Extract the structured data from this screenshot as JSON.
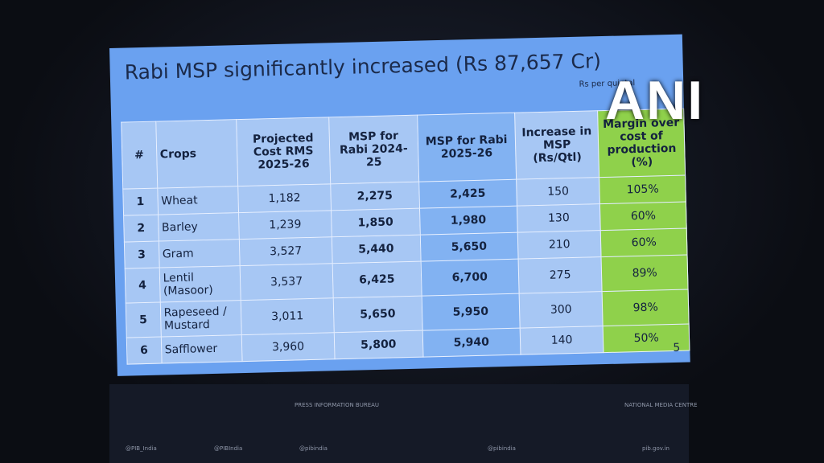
{
  "slide": {
    "title": "Rabi MSP significantly increased (Rs 87,657 Cr)",
    "unit_note": "Rs per quintal",
    "page_number": "5",
    "table": {
      "headers": [
        "#",
        "Crops",
        "Projected Cost RMS 2025-26",
        "MSP for Rabi 2024-25",
        "MSP for Rabi 2025-26",
        "Increase in MSP (Rs/Qtl)",
        "Margin over cost of production (%)"
      ],
      "rows": [
        [
          "1",
          "Wheat",
          "1,182",
          "2,275",
          "2,425",
          "150",
          "105%"
        ],
        [
          "2",
          "Barley",
          "1,239",
          "1,850",
          "1,980",
          "130",
          "60%"
        ],
        [
          "3",
          "Gram",
          "3,527",
          "5,440",
          "5,650",
          "210",
          "60%"
        ],
        [
          "4",
          "Lentil (Masoor)",
          "3,537",
          "6,425",
          "6,700",
          "275",
          "89%"
        ],
        [
          "5",
          "Rapeseed / Mustard",
          "3,011",
          "5,650",
          "5,950",
          "300",
          "98%"
        ],
        [
          "6",
          "Safflower",
          "3,960",
          "5,800",
          "5,940",
          "140",
          "50%"
        ]
      ]
    }
  },
  "watermark": "ANI",
  "footer": {
    "top": [
      "PRESS INFORMATION BUREAU",
      "NATIONAL MEDIA CENTRE"
    ],
    "handles": [
      "@PIB_India",
      "@PIBIndia",
      "@pibindia",
      "@pibindia",
      "pib.gov.in"
    ]
  }
}
